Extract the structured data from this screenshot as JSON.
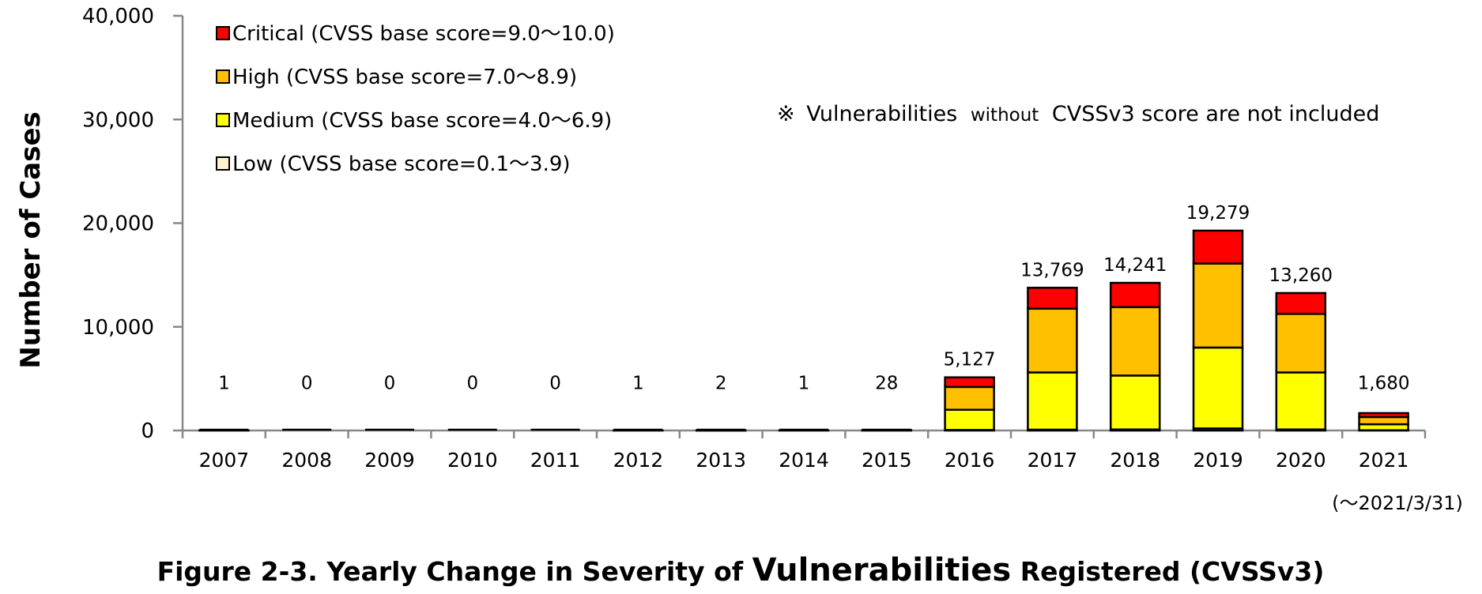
{
  "chart_data": {
    "type": "bar",
    "stacked": true,
    "title": "Figure 2-3. Yearly Change in Severity of Vulnerabilities Registered (CVSSv3)",
    "caption_parts": [
      "Figure 2-3. Yearly Change in Severity of ",
      "Vulnerabilities",
      " Registered (CVSSv3)"
    ],
    "ylabel": "Number of Cases",
    "xlabel": "",
    "ylim": [
      0,
      40000
    ],
    "yticks": [
      0,
      10000,
      20000,
      30000,
      40000
    ],
    "ytick_labels": [
      "0",
      "10,000",
      "20,000",
      "30,000",
      "40,000"
    ],
    "categories": [
      "2007",
      "2008",
      "2009",
      "2010",
      "2011",
      "2012",
      "2013",
      "2014",
      "2015",
      "2016",
      "2017",
      "2018",
      "2019",
      "2020",
      "2021"
    ],
    "last_category_note": "(～2021/3/31)",
    "totals": [
      1,
      0,
      0,
      0,
      0,
      1,
      2,
      1,
      28,
      5127,
      13769,
      14241,
      19279,
      13260,
      1680
    ],
    "total_labels": [
      "1",
      "0",
      "0",
      "0",
      "0",
      "1",
      "2",
      "1",
      "28",
      "5,127",
      "13,769",
      "14,241",
      "19,279",
      "13,260",
      "1,680"
    ],
    "series": [
      {
        "name": "Low (CVSS base score=0.1～3.9)",
        "color": "#FFF2CC",
        "values": [
          0,
          0,
          0,
          0,
          0,
          0,
          0,
          0,
          0,
          50,
          80,
          100,
          200,
          100,
          20
        ]
      },
      {
        "name": "Medium (CVSS base score=4.0～6.9)",
        "color": "#FFFF00",
        "values": [
          1,
          0,
          0,
          0,
          0,
          1,
          1,
          0,
          14,
          1950,
          5520,
          5200,
          7800,
          5500,
          580
        ]
      },
      {
        "name": "High (CVSS base score=7.0～8.9)",
        "color": "#FFC000",
        "values": [
          0,
          0,
          0,
          0,
          0,
          0,
          1,
          1,
          12,
          2200,
          6150,
          6600,
          8100,
          5650,
          700
        ]
      },
      {
        "name": "Critical (CVSS base score=9.0～10.0)",
        "color": "#FF0000",
        "values": [
          0,
          0,
          0,
          0,
          0,
          0,
          0,
          0,
          2,
          927,
          2019,
          2341,
          3179,
          2010,
          380
        ]
      }
    ],
    "legend_order": [
      "Critical (CVSS base score=9.0～10.0)",
      "High (CVSS base score=7.0～8.9)",
      "Medium (CVSS base score=4.0～6.9)",
      "Low (CVSS base score=0.1～3.9)"
    ],
    "legend_position": "top-left",
    "annotation": {
      "symbol": "※",
      "text_a": "Vulnerabilities",
      "text_b": "without",
      "text_c": "CVSSv3 score are not included"
    },
    "grid": false
  }
}
